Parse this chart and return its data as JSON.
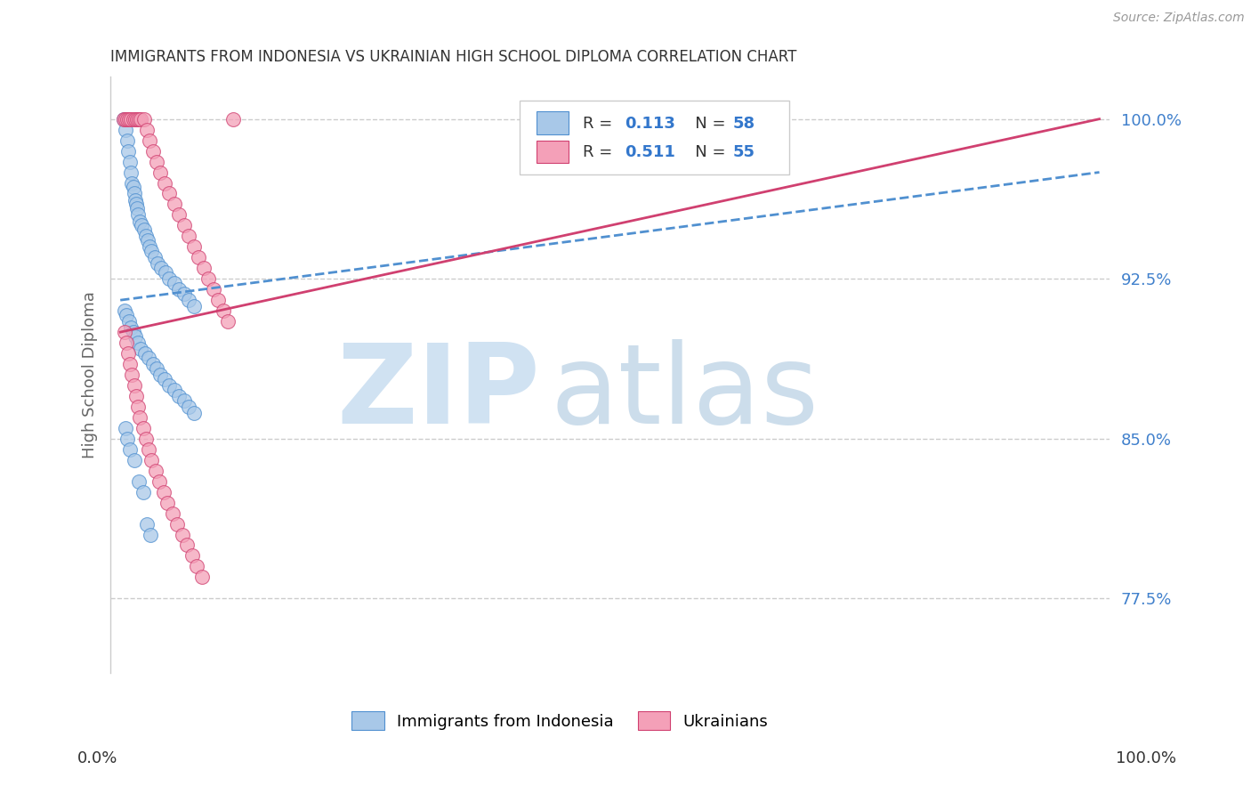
{
  "title": "IMMIGRANTS FROM INDONESIA VS UKRAINIAN HIGH SCHOOL DIPLOMA CORRELATION CHART",
  "source": "Source: ZipAtlas.com",
  "ylabel": "High School Diploma",
  "yticks": [
    77.5,
    85.0,
    92.5,
    100.0
  ],
  "ytick_labels": [
    "77.5%",
    "85.0%",
    "92.5%",
    "100.0%"
  ],
  "xmin": 0.0,
  "xmax": 100.0,
  "ymin": 74.0,
  "ymax": 102.0,
  "color_indonesia": "#a8c8e8",
  "color_ukraine": "#f4a0b8",
  "color_trendline_indonesia": "#5090d0",
  "color_trendline_ukraine": "#d04070",
  "background_color": "#ffffff",
  "indo_x": [
    0.3,
    0.5,
    0.7,
    0.8,
    1.0,
    1.1,
    1.2,
    1.3,
    1.4,
    1.5,
    1.6,
    1.7,
    1.8,
    2.0,
    2.2,
    2.4,
    2.6,
    2.8,
    3.0,
    3.2,
    3.5,
    3.8,
    4.2,
    4.6,
    5.0,
    5.5,
    6.0,
    6.5,
    7.0,
    7.5,
    0.4,
    0.6,
    0.9,
    1.1,
    1.3,
    1.5,
    1.8,
    2.1,
    2.5,
    2.9,
    3.3,
    3.7,
    4.1,
    4.5,
    5.0,
    5.5,
    6.0,
    6.5,
    7.0,
    7.5,
    0.5,
    0.7,
    1.0,
    1.4,
    1.9,
    2.3,
    2.7,
    3.1
  ],
  "indo_y": [
    100.0,
    99.5,
    99.0,
    98.5,
    98.0,
    97.5,
    97.0,
    96.8,
    96.5,
    96.2,
    96.0,
    95.8,
    95.5,
    95.2,
    95.0,
    94.8,
    94.5,
    94.3,
    94.0,
    93.8,
    93.5,
    93.2,
    93.0,
    92.8,
    92.5,
    92.3,
    92.0,
    91.8,
    91.5,
    91.2,
    91.0,
    90.8,
    90.5,
    90.2,
    90.0,
    89.8,
    89.5,
    89.2,
    89.0,
    88.8,
    88.5,
    88.3,
    88.0,
    87.8,
    87.5,
    87.3,
    87.0,
    86.8,
    86.5,
    86.2,
    85.5,
    85.0,
    84.5,
    84.0,
    83.0,
    82.5,
    81.0,
    80.5
  ],
  "ukr_x": [
    0.3,
    0.5,
    0.7,
    0.9,
    1.1,
    1.3,
    1.5,
    1.7,
    1.9,
    2.1,
    2.4,
    2.7,
    3.0,
    3.3,
    3.7,
    4.1,
    4.5,
    5.0,
    5.5,
    6.0,
    6.5,
    7.0,
    7.5,
    8.0,
    8.5,
    9.0,
    9.5,
    10.0,
    10.5,
    11.0,
    0.4,
    0.6,
    0.8,
    1.0,
    1.2,
    1.4,
    1.6,
    1.8,
    2.0,
    2.3,
    2.6,
    2.9,
    3.2,
    3.6,
    4.0,
    4.4,
    4.8,
    5.3,
    5.8,
    6.3,
    6.8,
    7.3,
    7.8,
    8.3,
    11.5
  ],
  "ukr_y": [
    100.0,
    100.0,
    100.0,
    100.0,
    100.0,
    100.0,
    100.0,
    100.0,
    100.0,
    100.0,
    100.0,
    99.5,
    99.0,
    98.5,
    98.0,
    97.5,
    97.0,
    96.5,
    96.0,
    95.5,
    95.0,
    94.5,
    94.0,
    93.5,
    93.0,
    92.5,
    92.0,
    91.5,
    91.0,
    90.5,
    90.0,
    89.5,
    89.0,
    88.5,
    88.0,
    87.5,
    87.0,
    86.5,
    86.0,
    85.5,
    85.0,
    84.5,
    84.0,
    83.5,
    83.0,
    82.5,
    82.0,
    81.5,
    81.0,
    80.5,
    80.0,
    79.5,
    79.0,
    78.5,
    100.0
  ]
}
